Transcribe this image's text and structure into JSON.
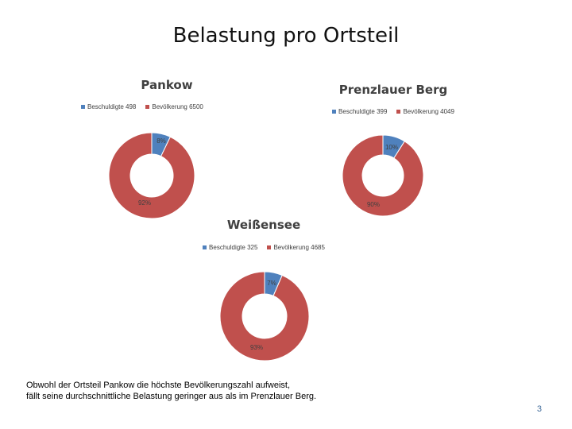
{
  "slide": {
    "title": "Belastung pro Ortsteil",
    "caption_line1": "Obwohl der Ortsteil Pankow die höchste Bevölkerungszahl aufweist,",
    "caption_line2": "fällt seine durchschnittliche Belastung geringer aus als im Prenzlauer Berg.",
    "page_number": "3"
  },
  "colors": {
    "beschuldigte": "#4f81bd",
    "bevoelkerung": "#c0504d"
  },
  "chart_data": [
    {
      "type": "pie",
      "title": "Pankow",
      "legend": [
        "Beschuldigte 498",
        "Bevölkerung 6500"
      ],
      "categories": [
        "Beschuldigte",
        "Bevölkerung"
      ],
      "values": [
        498,
        6500
      ],
      "percent_labels": [
        "8%",
        "92%"
      ]
    },
    {
      "type": "pie",
      "title": "Prenzlauer Berg",
      "legend": [
        "Beschuldigte 399",
        "Bevölkerung 4049"
      ],
      "categories": [
        "Beschuldigte",
        "Bevölkerung"
      ],
      "values": [
        399,
        4049
      ],
      "percent_labels": [
        "10%",
        "90%"
      ]
    },
    {
      "type": "pie",
      "title": "Weißensee",
      "legend": [
        "Beschuldigte 325",
        "Bevölkerung 4685"
      ],
      "categories": [
        "Beschuldigte",
        "Bevölkerung"
      ],
      "values": [
        325,
        4685
      ],
      "percent_labels": [
        "7%",
        "93%"
      ]
    }
  ]
}
